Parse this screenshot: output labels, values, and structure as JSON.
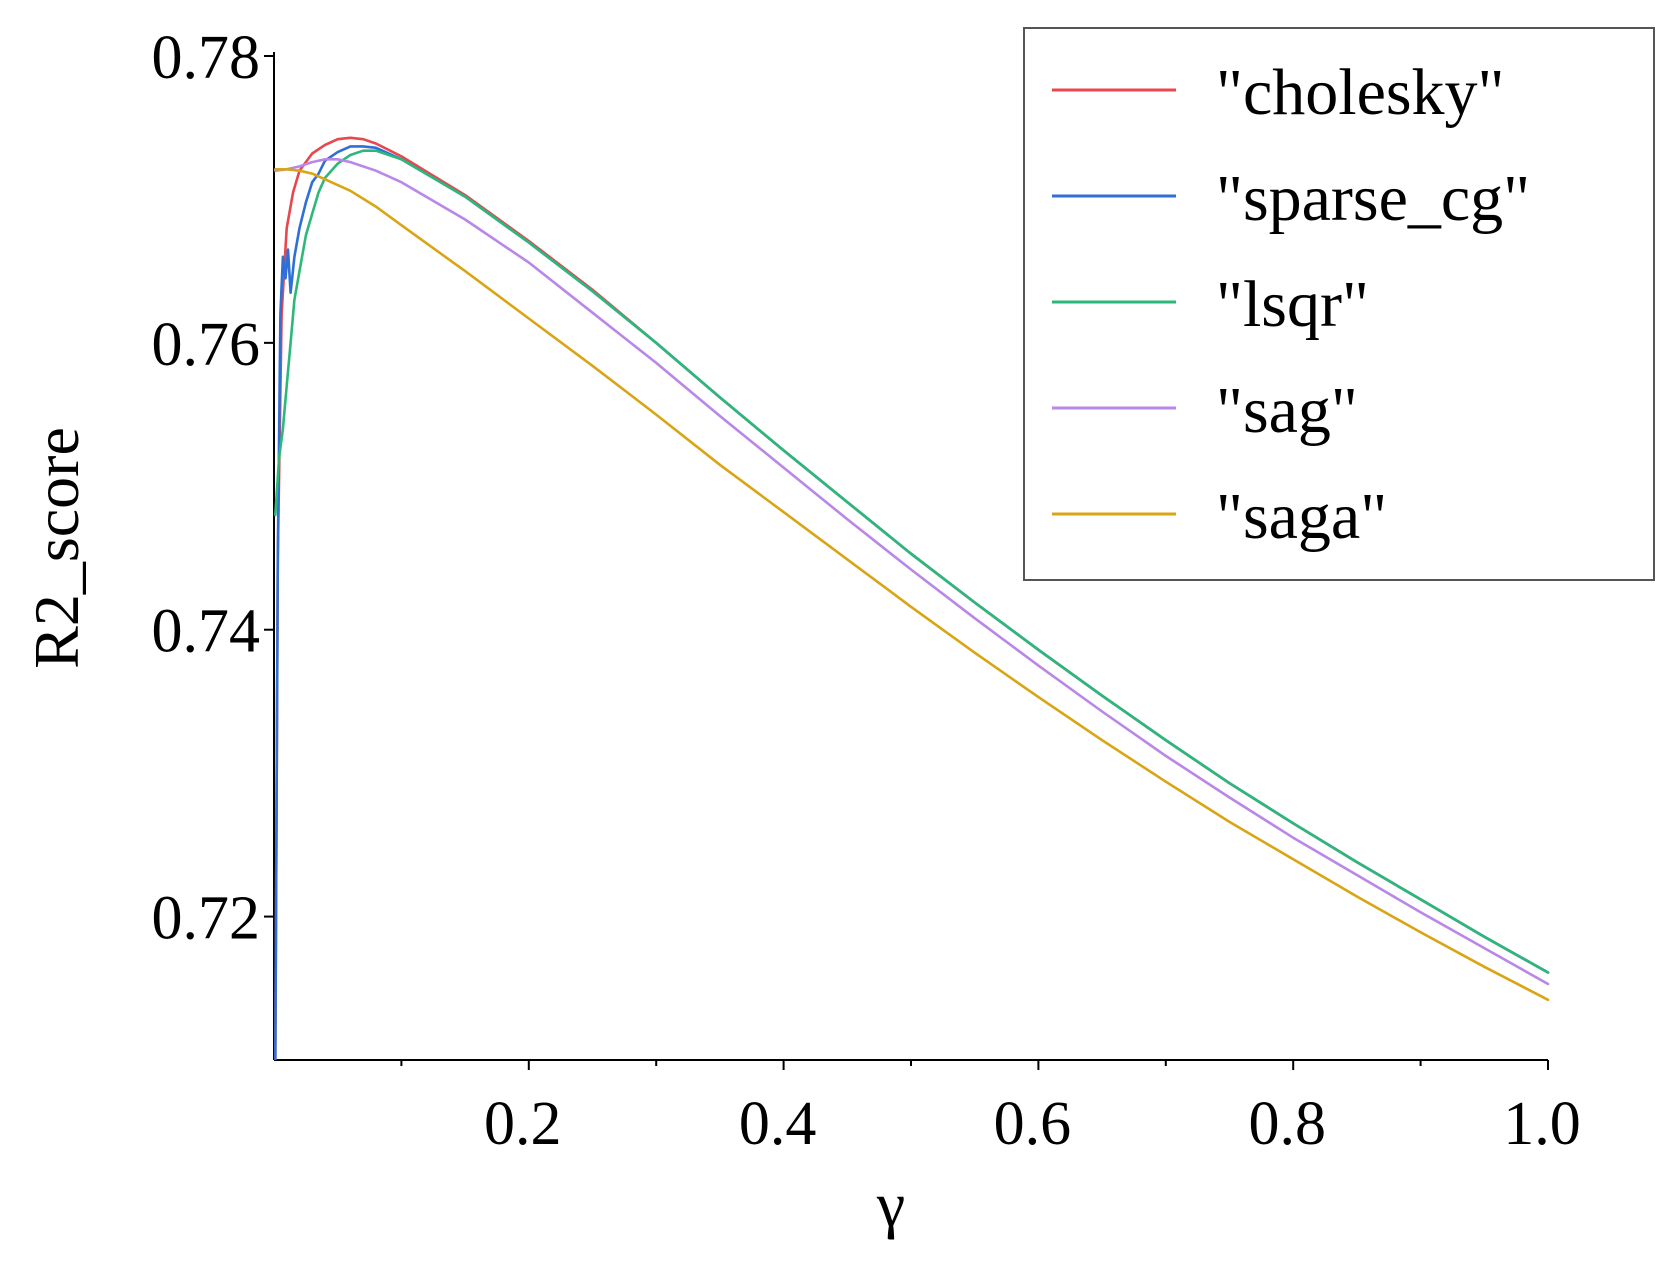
{
  "chart_data": {
    "type": "line",
    "title": "",
    "xlabel": "γ",
    "ylabel": "R2_score",
    "xlim": [
      0.0,
      1.0
    ],
    "ylim": [
      0.71,
      0.78
    ],
    "x_ticks": [
      0.2,
      0.4,
      0.6,
      0.8,
      1.0
    ],
    "x_tick_labels": [
      "0.2",
      "0.4",
      "0.6",
      "0.8",
      "1.0"
    ],
    "x_minor_ticks": [
      0.1,
      0.3,
      0.5,
      0.7,
      0.9
    ],
    "y_ticks": [
      0.72,
      0.74,
      0.76,
      0.78
    ],
    "y_tick_labels": [
      "0.72",
      "0.74",
      "0.76",
      "0.78"
    ],
    "grid": false,
    "legend_position": "top-right",
    "series": [
      {
        "name": "\"cholesky\"",
        "color": "#e8474d",
        "points": [
          [
            0.001,
            0.71
          ],
          [
            0.003,
            0.745
          ],
          [
            0.006,
            0.762
          ],
          [
            0.01,
            0.768
          ],
          [
            0.015,
            0.7705
          ],
          [
            0.02,
            0.772
          ],
          [
            0.03,
            0.7732
          ],
          [
            0.04,
            0.7738
          ],
          [
            0.05,
            0.7742
          ],
          [
            0.06,
            0.7743
          ],
          [
            0.07,
            0.7742
          ],
          [
            0.08,
            0.7739
          ],
          [
            0.1,
            0.773
          ],
          [
            0.15,
            0.7703
          ],
          [
            0.2,
            0.7671
          ],
          [
            0.25,
            0.7637
          ],
          [
            0.3,
            0.76
          ],
          [
            0.35,
            0.7562
          ],
          [
            0.4,
            0.7525
          ],
          [
            0.45,
            0.7489
          ],
          [
            0.5,
            0.7453
          ],
          [
            0.55,
            0.7419
          ],
          [
            0.6,
            0.7386
          ],
          [
            0.65,
            0.7354
          ],
          [
            0.7,
            0.7323
          ],
          [
            0.75,
            0.7293
          ],
          [
            0.8,
            0.7265
          ],
          [
            0.85,
            0.7238
          ],
          [
            0.9,
            0.7212
          ],
          [
            0.95,
            0.7186
          ],
          [
            1.0,
            0.7161
          ]
        ]
      },
      {
        "name": "\"sparse_cg\"",
        "color": "#2f6fd6",
        "points": [
          [
            0.001,
            0.71
          ],
          [
            0.003,
            0.745
          ],
          [
            0.005,
            0.762
          ],
          [
            0.007,
            0.766
          ],
          [
            0.009,
            0.7645
          ],
          [
            0.011,
            0.7665
          ],
          [
            0.013,
            0.7635
          ],
          [
            0.016,
            0.766
          ],
          [
            0.02,
            0.768
          ],
          [
            0.025,
            0.7698
          ],
          [
            0.03,
            0.7712
          ],
          [
            0.035,
            0.7718
          ],
          [
            0.04,
            0.7727
          ],
          [
            0.05,
            0.7733
          ],
          [
            0.06,
            0.7737
          ],
          [
            0.07,
            0.7737
          ],
          [
            0.08,
            0.7736
          ],
          [
            0.1,
            0.7728
          ],
          [
            0.15,
            0.7702
          ],
          [
            0.2,
            0.767
          ],
          [
            0.25,
            0.7636
          ],
          [
            0.3,
            0.76
          ],
          [
            0.35,
            0.7562
          ],
          [
            0.4,
            0.7525
          ],
          [
            0.45,
            0.7489
          ],
          [
            0.5,
            0.7453
          ],
          [
            0.55,
            0.7419
          ],
          [
            0.6,
            0.7386
          ],
          [
            0.65,
            0.7354
          ],
          [
            0.7,
            0.7323
          ],
          [
            0.75,
            0.7293
          ],
          [
            0.8,
            0.7265
          ],
          [
            0.85,
            0.7238
          ],
          [
            0.9,
            0.7212
          ],
          [
            0.95,
            0.7186
          ],
          [
            1.0,
            0.7161
          ]
        ]
      },
      {
        "name": "\"lsqr\"",
        "color": "#2db87a",
        "points": [
          [
            0.001,
            0.748
          ],
          [
            0.004,
            0.752
          ],
          [
            0.007,
            0.754
          ],
          [
            0.01,
            0.757
          ],
          [
            0.013,
            0.76
          ],
          [
            0.016,
            0.763
          ],
          [
            0.02,
            0.765
          ],
          [
            0.025,
            0.7675
          ],
          [
            0.03,
            0.769
          ],
          [
            0.035,
            0.7705
          ],
          [
            0.04,
            0.7715
          ],
          [
            0.05,
            0.7725
          ],
          [
            0.06,
            0.7731
          ],
          [
            0.07,
            0.7734
          ],
          [
            0.08,
            0.7734
          ],
          [
            0.1,
            0.7728
          ],
          [
            0.15,
            0.7702
          ],
          [
            0.2,
            0.767
          ],
          [
            0.25,
            0.7636
          ],
          [
            0.3,
            0.76
          ],
          [
            0.35,
            0.7562
          ],
          [
            0.4,
            0.7525
          ],
          [
            0.45,
            0.7489
          ],
          [
            0.5,
            0.7453
          ],
          [
            0.55,
            0.7419
          ],
          [
            0.6,
            0.7386
          ],
          [
            0.65,
            0.7354
          ],
          [
            0.7,
            0.7323
          ],
          [
            0.75,
            0.7293
          ],
          [
            0.8,
            0.7265
          ],
          [
            0.85,
            0.7238
          ],
          [
            0.9,
            0.7212
          ],
          [
            0.95,
            0.7186
          ],
          [
            1.0,
            0.7161
          ]
        ]
      },
      {
        "name": "\"sag\"",
        "color": "#b987e8",
        "points": [
          [
            0.001,
            0.772
          ],
          [
            0.01,
            0.7721
          ],
          [
            0.02,
            0.7723
          ],
          [
            0.03,
            0.7726
          ],
          [
            0.04,
            0.7728
          ],
          [
            0.05,
            0.7728
          ],
          [
            0.06,
            0.7726
          ],
          [
            0.08,
            0.772
          ],
          [
            0.1,
            0.7712
          ],
          [
            0.15,
            0.7686
          ],
          [
            0.2,
            0.7656
          ],
          [
            0.25,
            0.7621
          ],
          [
            0.3,
            0.7586
          ],
          [
            0.35,
            0.7549
          ],
          [
            0.4,
            0.7513
          ],
          [
            0.45,
            0.7477
          ],
          [
            0.5,
            0.7442
          ],
          [
            0.55,
            0.7408
          ],
          [
            0.6,
            0.7375
          ],
          [
            0.65,
            0.7343
          ],
          [
            0.7,
            0.7312
          ],
          [
            0.75,
            0.7283
          ],
          [
            0.8,
            0.7255
          ],
          [
            0.85,
            0.7229
          ],
          [
            0.9,
            0.7203
          ],
          [
            0.95,
            0.7178
          ],
          [
            1.0,
            0.7153
          ]
        ]
      },
      {
        "name": "\"saga\"",
        "color": "#d9a514",
        "points": [
          [
            0.001,
            0.7721
          ],
          [
            0.01,
            0.7721
          ],
          [
            0.02,
            0.772
          ],
          [
            0.03,
            0.7718
          ],
          [
            0.04,
            0.7714
          ],
          [
            0.06,
            0.7706
          ],
          [
            0.08,
            0.7695
          ],
          [
            0.1,
            0.7682
          ],
          [
            0.15,
            0.765
          ],
          [
            0.2,
            0.7617
          ],
          [
            0.25,
            0.7584
          ],
          [
            0.3,
            0.755
          ],
          [
            0.35,
            0.7515
          ],
          [
            0.4,
            0.7482
          ],
          [
            0.45,
            0.7449
          ],
          [
            0.5,
            0.7416
          ],
          [
            0.55,
            0.7384
          ],
          [
            0.6,
            0.7353
          ],
          [
            0.65,
            0.7323
          ],
          [
            0.7,
            0.7294
          ],
          [
            0.75,
            0.7266
          ],
          [
            0.8,
            0.724
          ],
          [
            0.85,
            0.7214
          ],
          [
            0.9,
            0.7189
          ],
          [
            0.95,
            0.7165
          ],
          [
            1.0,
            0.7142
          ]
        ]
      }
    ]
  }
}
